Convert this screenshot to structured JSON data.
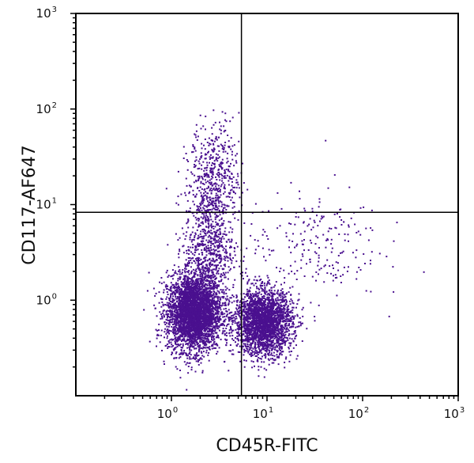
{
  "chart_data": {
    "type": "scatter",
    "title": "",
    "xlabel": "CD45R-FITC",
    "ylabel": "CD117-AF647",
    "xscale": "log",
    "yscale": "log",
    "xlim": [
      0.1,
      1000
    ],
    "ylim": [
      0.1,
      1000
    ],
    "xticks": [
      {
        "base": "10",
        "exp": "0"
      },
      {
        "base": "10",
        "exp": "1"
      },
      {
        "base": "10",
        "exp": "2"
      },
      {
        "base": "10",
        "exp": "3"
      }
    ],
    "yticks": [
      {
        "base": "10",
        "exp": "0"
      },
      {
        "base": "10",
        "exp": "1"
      },
      {
        "base": "10",
        "exp": "2"
      },
      {
        "base": "10",
        "exp": "3"
      }
    ],
    "xtick_values": [
      1,
      10,
      100,
      1000
    ],
    "ytick_values": [
      1,
      10,
      100,
      1000
    ],
    "quadrant_gates": {
      "x": 5.4,
      "y": 8.3
    },
    "grid": false,
    "point_color": "#4a108f",
    "populations": [
      {
        "name": "CD45R- CD117- (main)",
        "center": [
          1.7,
          0.75
        ],
        "log_sd": [
          0.14,
          0.2
        ],
        "count": 3600
      },
      {
        "name": "CD45R+ CD117-",
        "center": [
          9.0,
          0.6
        ],
        "log_sd": [
          0.15,
          0.17
        ],
        "count": 2600
      },
      {
        "name": "CD117+ upper",
        "center": [
          2.8,
          20
        ],
        "log_sd": [
          0.13,
          0.28
        ],
        "count": 500
      },
      {
        "name": "bridge",
        "center": [
          2.4,
          3.5
        ],
        "log_sd": [
          0.13,
          0.3
        ],
        "count": 700
      },
      {
        "name": "scattered high CD45R",
        "center": [
          30,
          4
        ],
        "log_sd": [
          0.35,
          0.3
        ],
        "count": 220
      }
    ]
  }
}
